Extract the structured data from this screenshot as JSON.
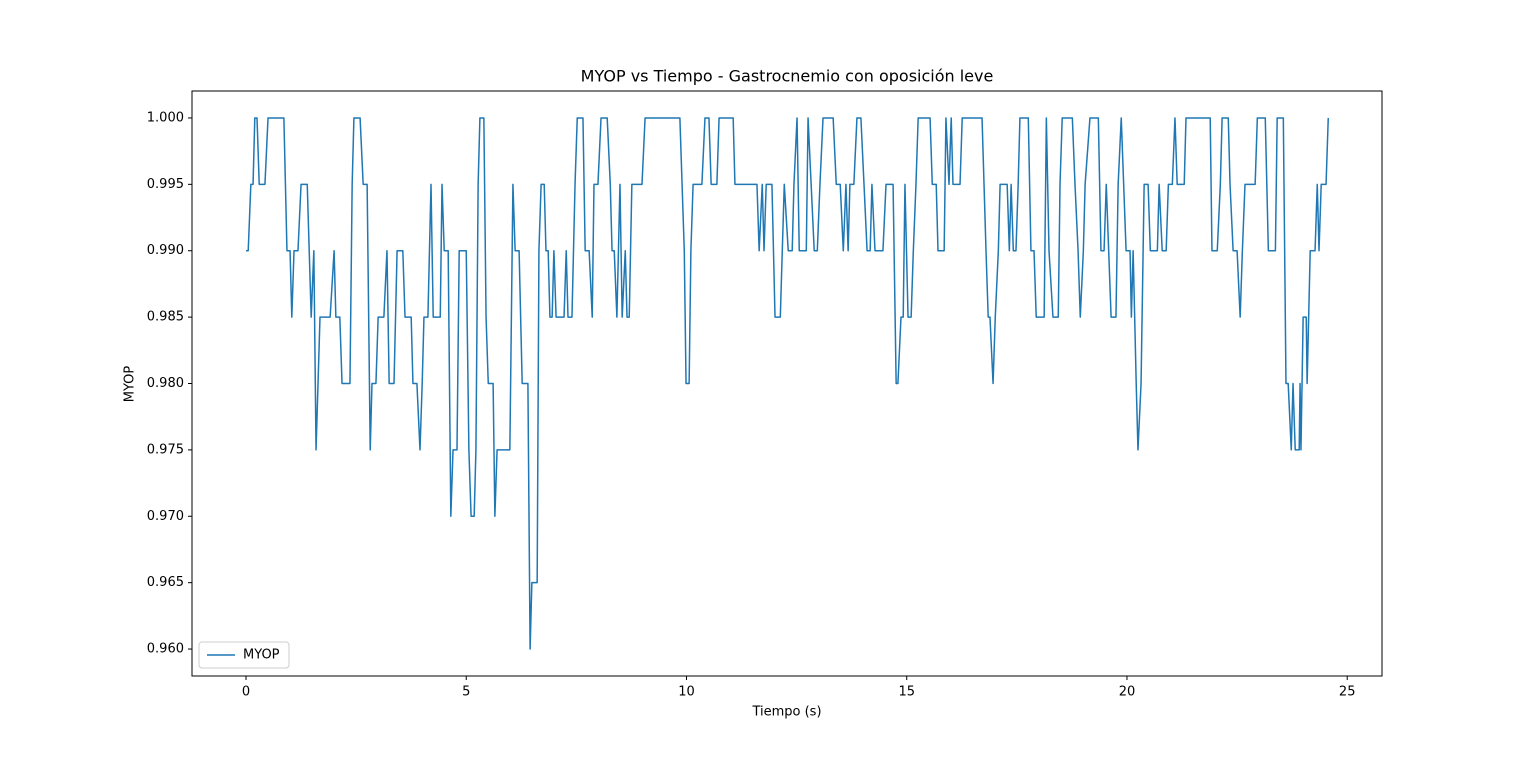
{
  "chart_data": {
    "type": "line",
    "title": "MYOP vs Tiempo - Gastrocnemio con oposición leve",
    "x_label": "Tiempo (s)",
    "y_label": "MYOP",
    "xlim": [
      -1.226,
      25.79
    ],
    "ylim": [
      0.95797,
      1.00203
    ],
    "xticks": [
      0,
      5,
      10,
      15,
      20,
      25
    ],
    "yticks": [
      {
        "value": 0.96,
        "label": "0.960"
      },
      0.965,
      {
        "value": 0.97,
        "label": "0.970"
      },
      0.975,
      {
        "value": 0.98,
        "label": "0.980"
      },
      0.985,
      {
        "value": 0.99,
        "label": "0.990"
      },
      0.995,
      {
        "value": 1.0,
        "label": "1.000"
      }
    ],
    "grid": false,
    "legend": "lower left",
    "x": [
      0,
      0.05,
      0.11,
      0.16,
      0.2,
      0.25,
      0.3,
      0.43,
      0.5,
      0.86,
      0.93,
      1.0,
      1.04,
      1.09,
      1.18,
      1.25,
      1.39,
      1.48,
      1.54,
      1.59,
      1.68,
      1.91,
      2.0,
      2.04,
      2.13,
      2.18,
      2.36,
      2.41,
      2.45,
      2.59,
      2.66,
      2.75,
      2.82,
      2.86,
      2.95,
      3.0,
      3.13,
      3.2,
      3.25,
      3.36,
      3.43,
      3.56,
      3.61,
      3.75,
      3.79,
      3.88,
      3.95,
      4.0,
      4.04,
      4.13,
      4.2,
      4.25,
      4.41,
      4.45,
      4.5,
      4.59,
      4.65,
      4.7,
      4.79,
      4.84,
      5.0,
      5.06,
      5.11,
      5.18,
      5.22,
      5.27,
      5.31,
      5.4,
      5.45,
      5.5,
      5.61,
      5.65,
      5.7,
      5.99,
      6.06,
      6.11,
      6.2,
      6.27,
      6.4,
      6.45,
      6.49,
      6.61,
      6.65,
      6.7,
      6.77,
      6.81,
      6.86,
      6.9,
      6.95,
      6.99,
      7.04,
      7.22,
      7.27,
      7.31,
      7.4,
      7.47,
      7.52,
      7.65,
      7.7,
      7.79,
      7.86,
      7.9,
      7.99,
      8.06,
      8.2,
      8.27,
      8.31,
      8.36,
      8.42,
      8.49,
      8.54,
      8.61,
      8.65,
      8.7,
      8.76,
      8.99,
      9.06,
      9.85,
      9.95,
      9.99,
      10.06,
      10.1,
      10.15,
      10.35,
      10.42,
      10.51,
      10.56,
      10.69,
      10.74,
      11.06,
      11.1,
      11.6,
      11.65,
      11.72,
      11.76,
      11.81,
      11.94,
      12.01,
      12.13,
      12.22,
      12.31,
      12.4,
      12.44,
      12.51,
      12.56,
      12.72,
      12.76,
      12.83,
      12.9,
      12.97,
      13.03,
      13.1,
      13.33,
      13.4,
      13.49,
      13.56,
      13.62,
      13.67,
      13.71,
      13.8,
      13.87,
      13.96,
      14.03,
      14.1,
      14.17,
      14.21,
      14.28,
      14.46,
      14.53,
      14.69,
      14.76,
      14.8,
      14.87,
      14.92,
      14.96,
      15.03,
      15.1,
      15.15,
      15.21,
      15.26,
      15.53,
      15.58,
      15.67,
      15.71,
      15.85,
      15.89,
      15.96,
      16.01,
      16.05,
      16.21,
      16.26,
      16.71,
      16.8,
      16.85,
      16.89,
      16.96,
      17.01,
      17.08,
      17.12,
      17.28,
      17.33,
      17.37,
      17.42,
      17.48,
      17.53,
      17.57,
      17.76,
      17.82,
      17.89,
      17.94,
      18.12,
      18.17,
      18.23,
      18.32,
      18.44,
      18.48,
      18.53,
      18.76,
      18.82,
      18.89,
      18.94,
      19.01,
      19.05,
      19.16,
      19.35,
      19.41,
      19.48,
      19.53,
      19.64,
      19.75,
      19.8,
      19.87,
      19.98,
      20.07,
      20.1,
      20.14,
      20.21,
      20.25,
      20.32,
      20.39,
      20.48,
      20.53,
      20.69,
      20.73,
      20.8,
      20.89,
      20.94,
      21.03,
      21.09,
      21.14,
      21.3,
      21.34,
      21.89,
      21.93,
      22.05,
      22.12,
      22.16,
      22.3,
      22.34,
      22.41,
      22.5,
      22.57,
      22.62,
      22.68,
      22.91,
      22.96,
      23.14,
      23.21,
      23.37,
      23.41,
      23.55,
      23.61,
      23.66,
      23.73,
      23.77,
      23.82,
      23.91,
      23.93,
      23.95,
      24.0,
      24.07,
      24.09,
      24.16,
      24.27,
      24.32,
      24.36,
      24.41,
      24.52,
      24.57
    ],
    "series": [
      {
        "name": "MYOP",
        "color": "#1f77b4",
        "values": [
          0.99,
          0.99,
          0.995,
          0.995,
          1.0,
          1.0,
          0.995,
          0.995,
          1.0,
          1.0,
          0.99,
          0.99,
          0.985,
          0.99,
          0.99,
          0.995,
          0.995,
          0.985,
          0.99,
          0.975,
          0.985,
          0.985,
          0.99,
          0.985,
          0.985,
          0.98,
          0.98,
          0.995,
          1.0,
          1.0,
          0.995,
          0.995,
          0.975,
          0.98,
          0.98,
          0.985,
          0.985,
          0.99,
          0.98,
          0.98,
          0.99,
          0.99,
          0.985,
          0.985,
          0.98,
          0.98,
          0.975,
          0.98,
          0.985,
          0.985,
          0.995,
          0.985,
          0.985,
          0.995,
          0.99,
          0.99,
          0.97,
          0.975,
          0.975,
          0.99,
          0.99,
          0.975,
          0.97,
          0.97,
          0.975,
          0.995,
          1.0,
          1.0,
          0.985,
          0.98,
          0.98,
          0.97,
          0.975,
          0.975,
          0.995,
          0.99,
          0.99,
          0.98,
          0.98,
          0.96,
          0.965,
          0.965,
          0.99,
          0.995,
          0.995,
          0.99,
          0.99,
          0.985,
          0.985,
          0.99,
          0.985,
          0.985,
          0.99,
          0.985,
          0.985,
          0.995,
          1.0,
          1.0,
          0.99,
          0.99,
          0.985,
          0.995,
          0.995,
          1.0,
          1.0,
          0.995,
          0.99,
          0.99,
          0.985,
          0.995,
          0.985,
          0.99,
          0.985,
          0.985,
          0.995,
          0.995,
          1.0,
          1.0,
          0.99,
          0.98,
          0.98,
          0.99,
          0.995,
          0.995,
          1.0,
          1.0,
          0.995,
          0.995,
          1.0,
          1.0,
          0.995,
          0.995,
          0.99,
          0.995,
          0.99,
          0.995,
          0.995,
          0.985,
          0.985,
          0.995,
          0.99,
          0.99,
          0.995,
          1.0,
          0.99,
          0.99,
          1.0,
          0.995,
          0.99,
          0.99,
          0.995,
          1.0,
          1.0,
          0.995,
          0.995,
          0.99,
          0.995,
          0.99,
          0.995,
          0.995,
          1.0,
          1.0,
          0.995,
          0.99,
          0.99,
          0.995,
          0.99,
          0.99,
          0.995,
          0.995,
          0.98,
          0.98,
          0.985,
          0.985,
          0.995,
          0.985,
          0.985,
          0.99,
          0.995,
          1.0,
          1.0,
          0.995,
          0.995,
          0.99,
          0.99,
          1.0,
          0.995,
          1.0,
          0.995,
          0.995,
          1.0,
          1.0,
          0.99,
          0.985,
          0.985,
          0.98,
          0.985,
          0.99,
          0.995,
          0.995,
          0.99,
          0.995,
          0.99,
          0.99,
          0.995,
          1.0,
          1.0,
          0.99,
          0.99,
          0.985,
          0.985,
          1.0,
          0.99,
          0.985,
          0.985,
          0.995,
          1.0,
          1.0,
          0.995,
          0.99,
          0.985,
          0.99,
          0.995,
          1.0,
          1.0,
          0.99,
          0.99,
          0.995,
          0.985,
          0.985,
          0.995,
          1.0,
          0.99,
          0.99,
          0.985,
          0.99,
          0.98,
          0.975,
          0.98,
          0.995,
          0.995,
          0.99,
          0.99,
          0.995,
          0.99,
          0.99,
          0.995,
          0.995,
          1.0,
          0.995,
          0.995,
          1.0,
          1.0,
          0.99,
          0.99,
          0.995,
          1.0,
          1.0,
          0.995,
          0.99,
          0.99,
          0.985,
          0.99,
          0.995,
          0.995,
          1.0,
          1.0,
          0.99,
          0.99,
          1.0,
          1.0,
          0.98,
          0.98,
          0.975,
          0.98,
          0.975,
          0.975,
          0.98,
          0.975,
          0.985,
          0.985,
          0.98,
          0.99,
          0.99,
          0.995,
          0.99,
          0.995,
          0.995,
          1.0
        ]
      }
    ]
  }
}
